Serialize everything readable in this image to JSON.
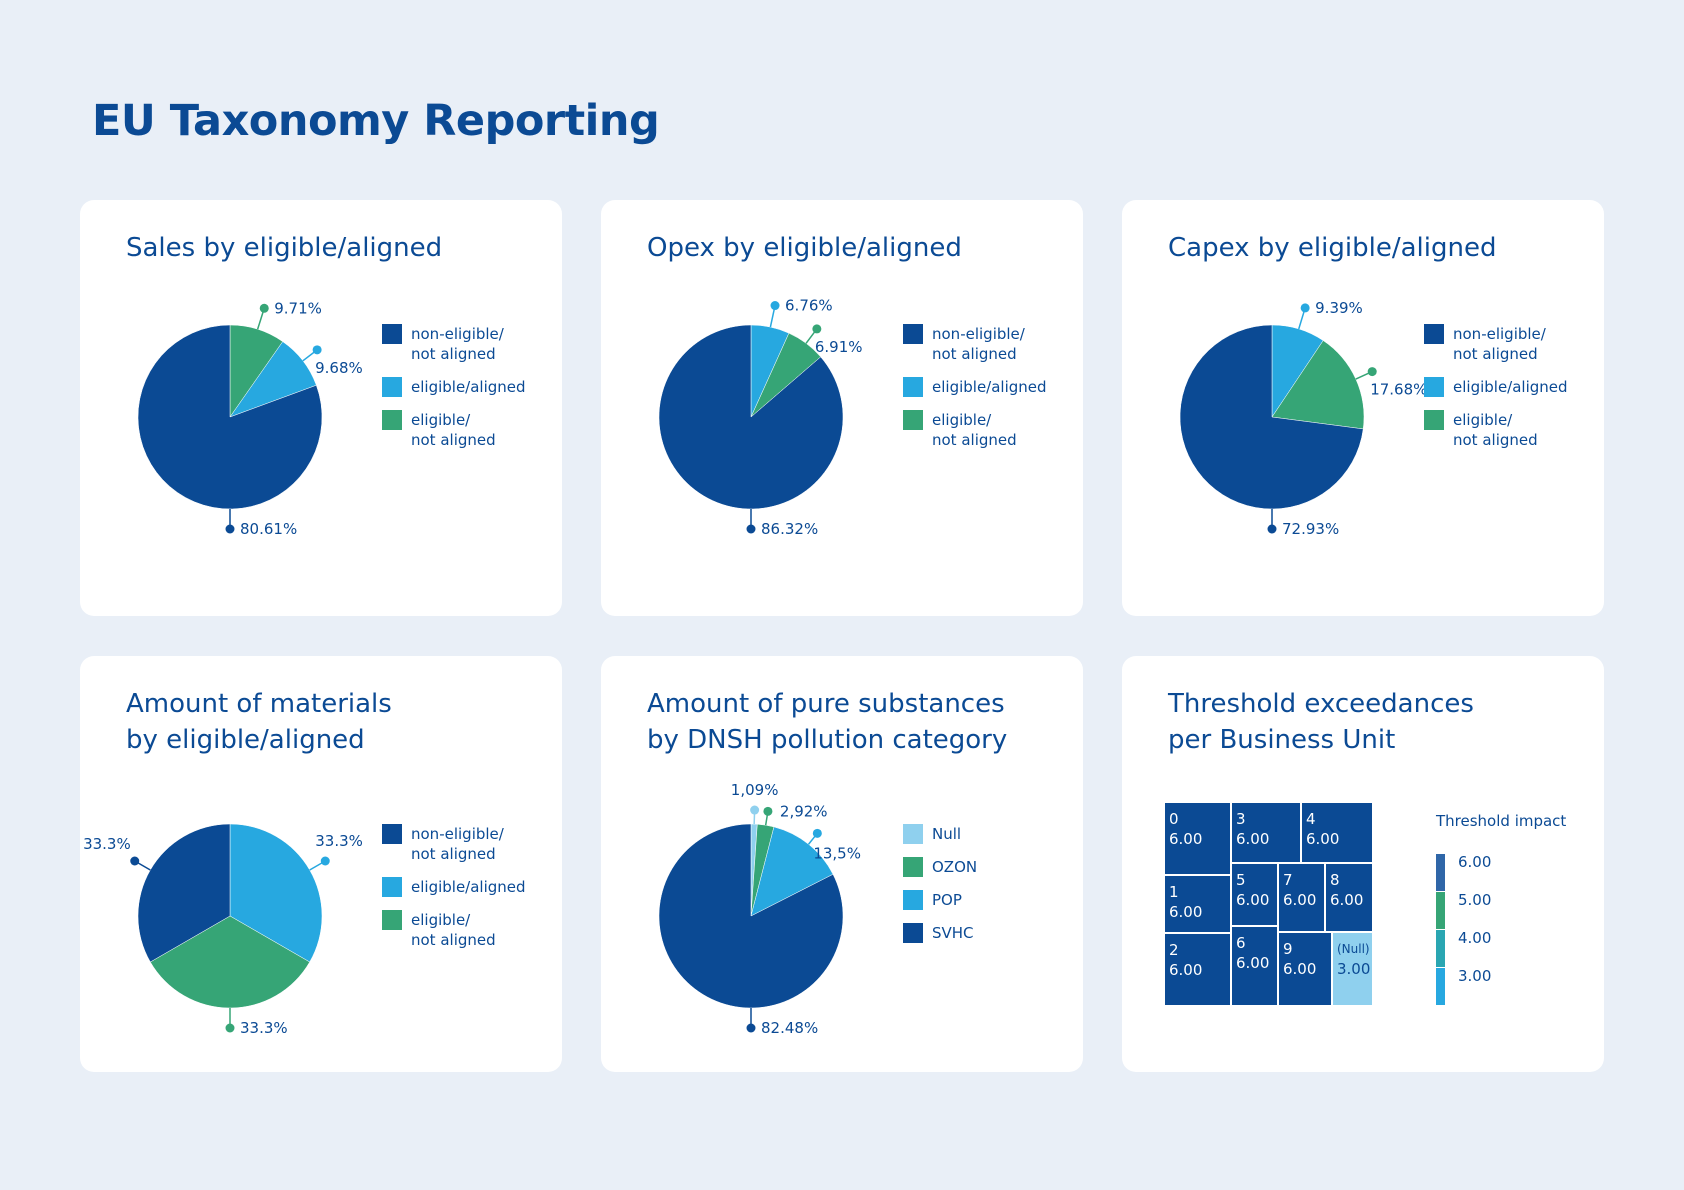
{
  "page": {
    "title": "EU Taxonomy Reporting"
  },
  "colors": {
    "dark_blue": "#0b4a94",
    "light_blue": "#27a8e0",
    "green": "#36a576",
    "pale_blue": "#8fd0ee",
    "background": "#e9eff7"
  },
  "chart_data": [
    {
      "type": "pie",
      "title": "Sales by eligible/aligned",
      "legend": [
        "non-eligible/\nnot aligned",
        "eligible/aligned",
        "eligible/\nnot aligned"
      ],
      "legend_colors": [
        "#0b4a94",
        "#27a8e0",
        "#36a576"
      ],
      "slices": [
        {
          "category": "non-eligible/not aligned",
          "value": 80.61,
          "label": "80.61%",
          "color": "#0b4a94"
        },
        {
          "category": "eligible/aligned",
          "value": 9.68,
          "label": "9.68%",
          "color": "#27a8e0"
        },
        {
          "category": "eligible/not aligned",
          "value": 9.71,
          "label": "9.71%",
          "color": "#36a576"
        }
      ]
    },
    {
      "type": "pie",
      "title": "Opex by eligible/aligned",
      "legend": [
        "non-eligible/\nnot aligned",
        "eligible/aligned",
        "eligible/\nnot aligned"
      ],
      "legend_colors": [
        "#0b4a94",
        "#27a8e0",
        "#36a576"
      ],
      "slices": [
        {
          "category": "non-eligible/not aligned",
          "value": 86.32,
          "label": "86.32%",
          "color": "#0b4a94"
        },
        {
          "category": "eligible/aligned",
          "value": 6.76,
          "label": "6.76%",
          "color": "#27a8e0"
        },
        {
          "category": "eligible/not aligned",
          "value": 6.91,
          "label": "6.91%",
          "color": "#36a576"
        }
      ]
    },
    {
      "type": "pie",
      "title": "Capex by eligible/aligned",
      "legend": [
        "non-eligible/\nnot aligned",
        "eligible/aligned",
        "eligible/\nnot aligned"
      ],
      "legend_colors": [
        "#0b4a94",
        "#27a8e0",
        "#36a576"
      ],
      "slices": [
        {
          "category": "non-eligible/not aligned",
          "value": 72.93,
          "label": "72.93%",
          "color": "#0b4a94"
        },
        {
          "category": "eligible/aligned",
          "value": 9.39,
          "label": "9.39%",
          "color": "#27a8e0"
        },
        {
          "category": "eligible/not aligned",
          "value": 17.68,
          "label": "17.68%",
          "color": "#36a576"
        }
      ]
    },
    {
      "type": "pie",
      "title": "Amount of materials\nby eligible/aligned",
      "legend": [
        "non-eligible/\nnot aligned",
        "eligible/aligned",
        "eligible/\nnot aligned"
      ],
      "legend_colors": [
        "#0b4a94",
        "#27a8e0",
        "#36a576"
      ],
      "slices": [
        {
          "category": "eligible/aligned",
          "value": 33.3,
          "label": "33.3%",
          "color": "#27a8e0"
        },
        {
          "category": "eligible/not aligned",
          "value": 33.3,
          "label": "33.3%",
          "color": "#36a576"
        },
        {
          "category": "non-eligible/not aligned",
          "value": 33.3,
          "label": "33.3%",
          "color": "#0b4a94"
        }
      ]
    },
    {
      "type": "pie",
      "title": "Amount of pure substances\nby DNSH pollution category",
      "legend": [
        "Null",
        "OZON",
        "POP",
        "SVHC"
      ],
      "legend_colors": [
        "#8fd0ee",
        "#36a576",
        "#27a8e0",
        "#0b4a94"
      ],
      "slices": [
        {
          "category": "Null",
          "value": 1.09,
          "label": "1,09%",
          "color": "#8fd0ee"
        },
        {
          "category": "OZON",
          "value": 2.92,
          "label": "2,92%",
          "color": "#36a576"
        },
        {
          "category": "POP",
          "value": 13.5,
          "label": "13,5%",
          "color": "#27a8e0"
        },
        {
          "category": "SVHC",
          "value": 82.48,
          "label": "82.48%",
          "color": "#0b4a94"
        }
      ]
    },
    {
      "type": "treemap",
      "title": "Threshold exceedances\nper Business Unit",
      "legend_title": "Threshold impact",
      "legend_values": [
        "6.00",
        "5.00",
        "4.00",
        "3.00"
      ],
      "legend_colors": [
        "#2f66a8",
        "#36a576",
        "#2aa6b2",
        "#27a8e0"
      ],
      "tiles": [
        {
          "name": "0",
          "value": "6.00"
        },
        {
          "name": "3",
          "value": "6.00"
        },
        {
          "name": "4",
          "value": "6.00"
        },
        {
          "name": "1",
          "value": "6.00"
        },
        {
          "name": "5",
          "value": "6.00"
        },
        {
          "name": "7",
          "value": "6.00"
        },
        {
          "name": "8",
          "value": "6.00"
        },
        {
          "name": "2",
          "value": "6.00"
        },
        {
          "name": "6",
          "value": "6.00"
        },
        {
          "name": "9",
          "value": "6.00"
        },
        {
          "name": "(Null)",
          "value": "3.00"
        }
      ]
    }
  ]
}
